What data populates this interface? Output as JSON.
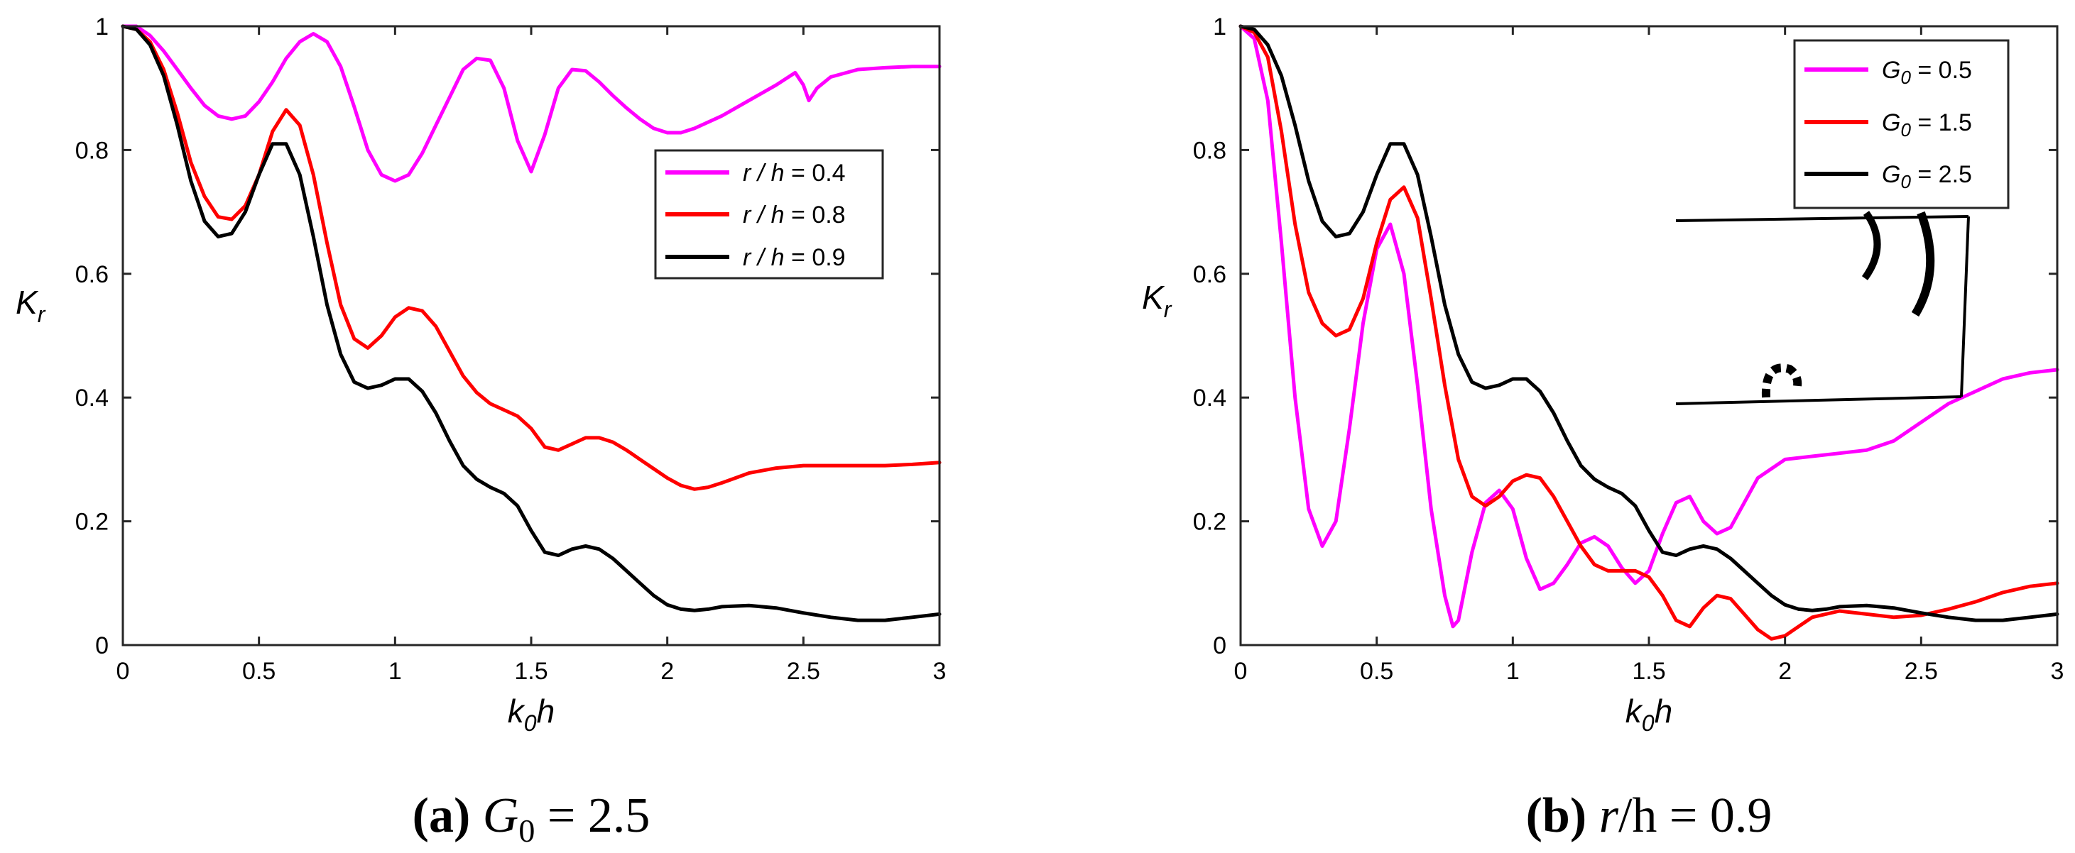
{
  "chart_data": [
    {
      "type": "line",
      "panel_id": "a",
      "caption": {
        "label": "(a)",
        "var": "G",
        "sub": "0",
        "rest": " = 2.5"
      },
      "xlabel": {
        "main": "k",
        "sub": "0",
        "post": "h"
      },
      "ylabel": {
        "main": "K",
        "sub": "r"
      },
      "xlim": [
        0,
        3
      ],
      "ylim": [
        0,
        1
      ],
      "xticks": [
        0,
        0.5,
        1,
        1.5,
        2,
        2.5,
        3
      ],
      "xtick_labels": [
        "0",
        "0.5",
        "1",
        "1.5",
        "2",
        "2.5",
        "3"
      ],
      "yticks": [
        0,
        0.2,
        0.4,
        0.6,
        0.8,
        1
      ],
      "ytick_labels": [
        "0",
        "0.2",
        "0.4",
        "0.6",
        "0.8",
        "1"
      ],
      "legend_position": "top-right",
      "series": [
        {
          "name": "r / h = 0.4",
          "legend": {
            "var": "r / h",
            "value": " = 0.4"
          },
          "color": "#ff00ff",
          "x": [
            0,
            0.05,
            0.1,
            0.15,
            0.2,
            0.25,
            0.3,
            0.35,
            0.4,
            0.45,
            0.5,
            0.55,
            0.6,
            0.65,
            0.7,
            0.75,
            0.8,
            0.85,
            0.9,
            0.95,
            1.0,
            1.05,
            1.1,
            1.15,
            1.2,
            1.25,
            1.3,
            1.35,
            1.4,
            1.45,
            1.5,
            1.55,
            1.6,
            1.65,
            1.7,
            1.75,
            1.8,
            1.85,
            1.9,
            1.95,
            2.0,
            2.05,
            2.1,
            2.2,
            2.3,
            2.4,
            2.47,
            2.5,
            2.52,
            2.55,
            2.6,
            2.7,
            2.8,
            2.9,
            3.0
          ],
          "y": [
            1.0,
            1.0,
            0.985,
            0.96,
            0.93,
            0.9,
            0.872,
            0.855,
            0.85,
            0.855,
            0.878,
            0.91,
            0.948,
            0.975,
            0.988,
            0.975,
            0.935,
            0.87,
            0.8,
            0.76,
            0.75,
            0.76,
            0.795,
            0.84,
            0.885,
            0.93,
            0.948,
            0.945,
            0.9,
            0.815,
            0.765,
            0.825,
            0.9,
            0.93,
            0.928,
            0.91,
            0.888,
            0.868,
            0.85,
            0.835,
            0.828,
            0.828,
            0.835,
            0.855,
            0.88,
            0.905,
            0.925,
            0.905,
            0.88,
            0.9,
            0.918,
            0.93,
            0.933,
            0.935,
            0.935
          ]
        },
        {
          "name": "r / h = 0.8",
          "legend": {
            "var": "r / h",
            "value": " = 0.8"
          },
          "color": "#ff0000",
          "x": [
            0,
            0.05,
            0.1,
            0.15,
            0.2,
            0.25,
            0.3,
            0.35,
            0.4,
            0.45,
            0.5,
            0.55,
            0.6,
            0.65,
            0.7,
            0.75,
            0.8,
            0.85,
            0.9,
            0.95,
            1.0,
            1.05,
            1.1,
            1.15,
            1.2,
            1.25,
            1.3,
            1.35,
            1.4,
            1.45,
            1.5,
            1.55,
            1.6,
            1.65,
            1.7,
            1.75,
            1.8,
            1.85,
            1.9,
            1.95,
            2.0,
            2.05,
            2.1,
            2.15,
            2.2,
            2.25,
            2.3,
            2.4,
            2.5,
            2.6,
            2.7,
            2.8,
            2.9,
            3.0
          ],
          "y": [
            1.0,
            0.995,
            0.975,
            0.93,
            0.86,
            0.78,
            0.725,
            0.692,
            0.688,
            0.71,
            0.76,
            0.83,
            0.865,
            0.84,
            0.76,
            0.65,
            0.55,
            0.495,
            0.48,
            0.5,
            0.53,
            0.545,
            0.54,
            0.515,
            0.475,
            0.435,
            0.408,
            0.39,
            0.38,
            0.37,
            0.35,
            0.32,
            0.315,
            0.325,
            0.335,
            0.335,
            0.328,
            0.315,
            0.3,
            0.285,
            0.27,
            0.258,
            0.252,
            0.255,
            0.262,
            0.27,
            0.278,
            0.286,
            0.29,
            0.29,
            0.29,
            0.29,
            0.292,
            0.295
          ]
        },
        {
          "name": "r / h = 0.9",
          "legend": {
            "var": "r / h",
            "value": " = 0.9"
          },
          "color": "#000000",
          "x": [
            0,
            0.05,
            0.1,
            0.15,
            0.2,
            0.25,
            0.3,
            0.35,
            0.4,
            0.45,
            0.5,
            0.55,
            0.6,
            0.65,
            0.7,
            0.75,
            0.8,
            0.85,
            0.9,
            0.95,
            1.0,
            1.05,
            1.1,
            1.15,
            1.2,
            1.25,
            1.3,
            1.35,
            1.4,
            1.45,
            1.5,
            1.55,
            1.6,
            1.65,
            1.7,
            1.75,
            1.8,
            1.85,
            1.9,
            1.95,
            2.0,
            2.05,
            2.1,
            2.15,
            2.2,
            2.3,
            2.4,
            2.5,
            2.6,
            2.7,
            2.8,
            2.9,
            3.0
          ],
          "y": [
            1.0,
            0.995,
            0.97,
            0.92,
            0.84,
            0.75,
            0.685,
            0.66,
            0.665,
            0.7,
            0.76,
            0.81,
            0.81,
            0.76,
            0.66,
            0.55,
            0.47,
            0.425,
            0.415,
            0.42,
            0.43,
            0.43,
            0.41,
            0.375,
            0.33,
            0.29,
            0.268,
            0.255,
            0.245,
            0.225,
            0.185,
            0.15,
            0.145,
            0.155,
            0.16,
            0.155,
            0.14,
            0.12,
            0.1,
            0.08,
            0.065,
            0.058,
            0.056,
            0.058,
            0.062,
            0.064,
            0.06,
            0.052,
            0.045,
            0.04,
            0.04,
            0.045,
            0.05
          ]
        }
      ]
    },
    {
      "type": "line",
      "panel_id": "b",
      "caption": {
        "label": "(b)",
        "var": "r",
        "sub": "",
        "rest": "/h = 0.9"
      },
      "xlabel": {
        "main": "k",
        "sub": "0",
        "post": "h"
      },
      "ylabel": {
        "main": "K",
        "sub": "r"
      },
      "xlim": [
        0,
        3
      ],
      "ylim": [
        0,
        1
      ],
      "xticks": [
        0,
        0.5,
        1,
        1.5,
        2,
        2.5,
        3
      ],
      "xtick_labels": [
        "0",
        "0.5",
        "1",
        "1.5",
        "2",
        "2.5",
        "3"
      ],
      "yticks": [
        0,
        0.2,
        0.4,
        0.6,
        0.8,
        1
      ],
      "ytick_labels": [
        "0",
        "0.2",
        "0.4",
        "0.6",
        "0.8",
        "1"
      ],
      "legend_position": "top-right",
      "inset": "schematic of curved plates between two horizontal lines",
      "series": [
        {
          "name": "G0 = 0.5",
          "legend": {
            "var": "G",
            "sub": "0",
            "value": " = 0.5"
          },
          "color": "#ff00ff",
          "x": [
            0,
            0.05,
            0.1,
            0.15,
            0.2,
            0.25,
            0.3,
            0.35,
            0.4,
            0.45,
            0.5,
            0.55,
            0.6,
            0.65,
            0.7,
            0.75,
            0.78,
            0.8,
            0.85,
            0.9,
            0.95,
            1.0,
            1.05,
            1.1,
            1.15,
            1.2,
            1.25,
            1.3,
            1.35,
            1.4,
            1.45,
            1.5,
            1.55,
            1.6,
            1.65,
            1.7,
            1.75,
            1.8,
            1.85,
            1.9,
            2.0,
            2.1,
            2.2,
            2.3,
            2.4,
            2.5,
            2.6,
            2.7,
            2.8,
            2.9,
            3.0
          ],
          "y": [
            1.0,
            0.98,
            0.88,
            0.65,
            0.4,
            0.22,
            0.16,
            0.2,
            0.35,
            0.52,
            0.64,
            0.68,
            0.6,
            0.42,
            0.22,
            0.08,
            0.03,
            0.04,
            0.15,
            0.23,
            0.25,
            0.22,
            0.14,
            0.09,
            0.1,
            0.13,
            0.165,
            0.175,
            0.16,
            0.125,
            0.1,
            0.12,
            0.18,
            0.23,
            0.24,
            0.2,
            0.18,
            0.19,
            0.23,
            0.27,
            0.3,
            0.305,
            0.31,
            0.315,
            0.33,
            0.36,
            0.39,
            0.41,
            0.43,
            0.44,
            0.445
          ]
        },
        {
          "name": "G0 = 1.5",
          "legend": {
            "var": "G",
            "sub": "0",
            "value": " = 1.5"
          },
          "color": "#ff0000",
          "x": [
            0,
            0.05,
            0.1,
            0.15,
            0.2,
            0.25,
            0.3,
            0.35,
            0.4,
            0.45,
            0.5,
            0.55,
            0.6,
            0.65,
            0.7,
            0.75,
            0.8,
            0.85,
            0.9,
            0.95,
            1.0,
            1.05,
            1.1,
            1.15,
            1.2,
            1.25,
            1.3,
            1.35,
            1.4,
            1.45,
            1.5,
            1.55,
            1.6,
            1.65,
            1.7,
            1.75,
            1.8,
            1.85,
            1.9,
            1.95,
            2.0,
            2.05,
            2.1,
            2.2,
            2.3,
            2.4,
            2.5,
            2.6,
            2.7,
            2.8,
            2.9,
            3.0
          ],
          "y": [
            1.0,
            0.99,
            0.95,
            0.83,
            0.68,
            0.57,
            0.52,
            0.5,
            0.51,
            0.56,
            0.65,
            0.72,
            0.74,
            0.69,
            0.56,
            0.42,
            0.3,
            0.24,
            0.225,
            0.24,
            0.265,
            0.275,
            0.27,
            0.24,
            0.2,
            0.16,
            0.13,
            0.12,
            0.12,
            0.12,
            0.11,
            0.08,
            0.04,
            0.03,
            0.06,
            0.08,
            0.075,
            0.05,
            0.025,
            0.01,
            0.015,
            0.03,
            0.045,
            0.055,
            0.05,
            0.045,
            0.048,
            0.058,
            0.07,
            0.085,
            0.095,
            0.1
          ]
        },
        {
          "name": "G0 = 2.5",
          "legend": {
            "var": "G",
            "sub": "0",
            "value": " = 2.5"
          },
          "color": "#000000",
          "x": [
            0,
            0.05,
            0.1,
            0.15,
            0.2,
            0.25,
            0.3,
            0.35,
            0.4,
            0.45,
            0.5,
            0.55,
            0.6,
            0.65,
            0.7,
            0.75,
            0.8,
            0.85,
            0.9,
            0.95,
            1.0,
            1.05,
            1.1,
            1.15,
            1.2,
            1.25,
            1.3,
            1.35,
            1.4,
            1.45,
            1.5,
            1.55,
            1.6,
            1.65,
            1.7,
            1.75,
            1.8,
            1.85,
            1.9,
            1.95,
            2.0,
            2.05,
            2.1,
            2.15,
            2.2,
            2.3,
            2.4,
            2.5,
            2.6,
            2.7,
            2.8,
            2.9,
            3.0
          ],
          "y": [
            1.0,
            0.995,
            0.97,
            0.92,
            0.84,
            0.75,
            0.685,
            0.66,
            0.665,
            0.7,
            0.76,
            0.81,
            0.81,
            0.76,
            0.66,
            0.55,
            0.47,
            0.425,
            0.415,
            0.42,
            0.43,
            0.43,
            0.41,
            0.375,
            0.33,
            0.29,
            0.268,
            0.255,
            0.245,
            0.225,
            0.185,
            0.15,
            0.145,
            0.155,
            0.16,
            0.155,
            0.14,
            0.12,
            0.1,
            0.08,
            0.065,
            0.058,
            0.056,
            0.058,
            0.062,
            0.064,
            0.06,
            0.052,
            0.045,
            0.04,
            0.04,
            0.045,
            0.05
          ]
        }
      ]
    }
  ]
}
